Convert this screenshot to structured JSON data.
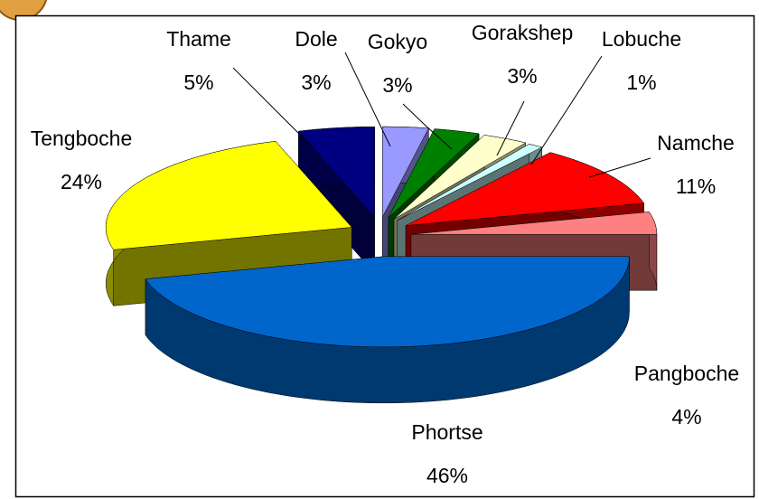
{
  "chart_data": {
    "type": "pie3d",
    "categories": [
      "Dole",
      "Gokyo",
      "Gorakshep",
      "Lobuche",
      "Namche",
      "Pangboche",
      "Phortse",
      "Tengboche",
      "Thame"
    ],
    "values": [
      3,
      3,
      3,
      1,
      11,
      4,
      46,
      24,
      5
    ],
    "value_labels": [
      "3%",
      "3%",
      "3%",
      "1%",
      "11%",
      "4%",
      "46%",
      "24%",
      "5%"
    ],
    "colors": [
      "#9999ff",
      "#008000",
      "#ffffcc",
      "#ccffff",
      "#ff0000",
      "#ff8080",
      "#0066cc",
      "#ffff00",
      "#000080"
    ]
  }
}
